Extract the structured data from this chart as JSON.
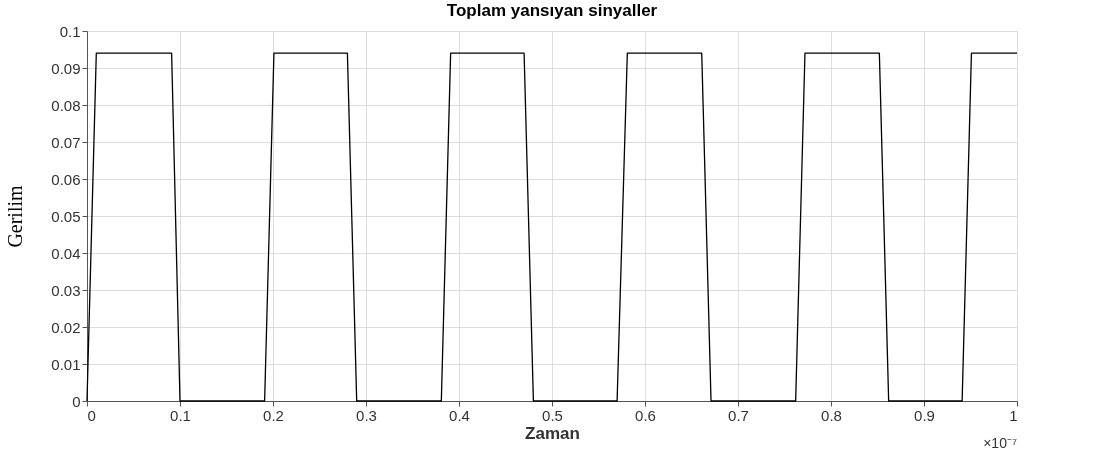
{
  "chart_data": {
    "type": "line",
    "title": "Toplam yansıyan sinyaller",
    "xlabel": "Zaman",
    "ylabel": "Gerilim",
    "annotations": [
      "×10⁻⁷"
    ],
    "series": [
      {
        "color": "#000000",
        "x": [
          0,
          0.01,
          0.091,
          0.1,
          0.191,
          0.201,
          0.28,
          0.29,
          0.381,
          0.391,
          0.47,
          0.48,
          0.57,
          0.581,
          0.661,
          0.671,
          0.762,
          0.772,
          0.852,
          0.862,
          0.941,
          0.951,
          1.0
        ],
        "values": [
          0,
          0.094,
          0.094,
          0,
          0,
          0.094,
          0.094,
          0,
          0,
          0.094,
          0.094,
          0,
          0,
          0.094,
          0.094,
          0,
          0,
          0.094,
          0.094,
          0,
          0,
          0.094,
          0.094
        ]
      }
    ],
    "xlim": [
      0,
      1
    ],
    "xticks": [
      0,
      0.1,
      0.2,
      0.3,
      0.4,
      0.5,
      0.6,
      0.7,
      0.8,
      0.9,
      1
    ],
    "ylim": [
      0,
      0.1
    ],
    "yticks": [
      0,
      0.01,
      0.02,
      0.03,
      0.04,
      0.05,
      0.06,
      0.07,
      0.08,
      0.09,
      0.1
    ],
    "grid": true,
    "marker": "none",
    "line_style": "solid"
  }
}
